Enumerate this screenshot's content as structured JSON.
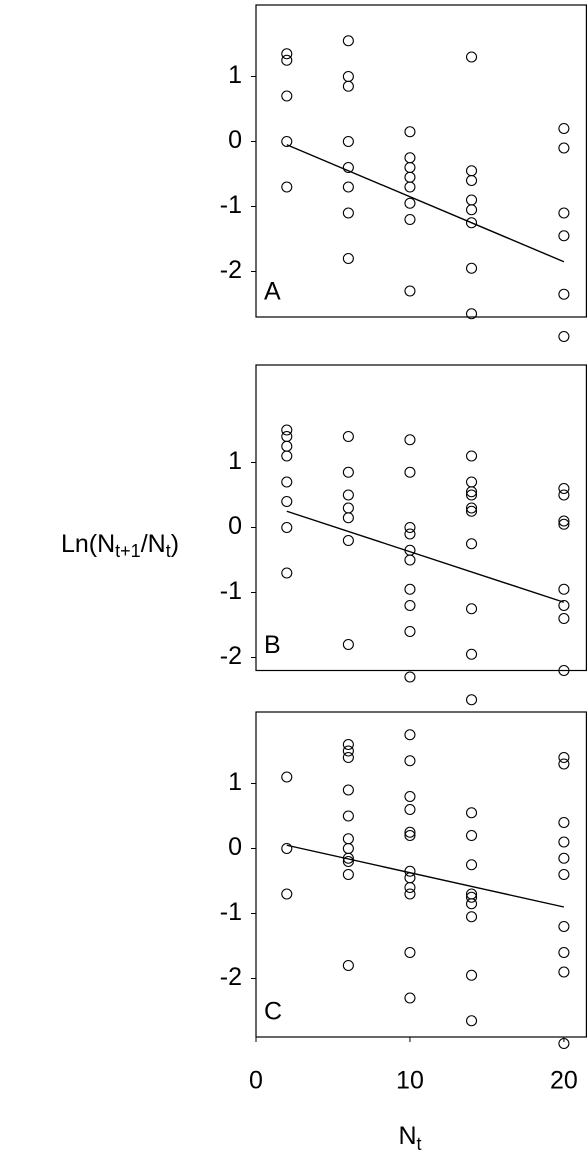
{
  "chart_data": [
    {
      "type": "scatter",
      "label": "A",
      "ylim": [
        -2.7,
        2.1
      ],
      "yticks": [
        -2,
        -1,
        0,
        1
      ],
      "xlim": [
        0,
        21.5
      ],
      "x": [
        2,
        2,
        2,
        2,
        2,
        6,
        6,
        6,
        6,
        6,
        6,
        6,
        6,
        10,
        10,
        10,
        10,
        10,
        10,
        10,
        10,
        14,
        14,
        14,
        14,
        14,
        14,
        14,
        14,
        20,
        20,
        20,
        20,
        20,
        20
      ],
      "y": [
        1.35,
        1.25,
        0.7,
        0.0,
        -0.7,
        1.55,
        1.0,
        0.85,
        0.0,
        -0.4,
        -0.7,
        -1.1,
        -1.8,
        0.15,
        -0.25,
        -0.4,
        -0.55,
        -0.7,
        -0.95,
        -1.2,
        -2.3,
        1.3,
        -0.45,
        -0.6,
        -0.9,
        -1.05,
        -1.25,
        -1.95,
        -2.65,
        0.2,
        -0.1,
        -1.1,
        -1.45,
        -2.35,
        -3.0
      ],
      "fit": {
        "x": [
          2,
          20
        ],
        "y": [
          -0.05,
          -1.85
        ]
      }
    },
    {
      "type": "scatter",
      "label": "B",
      "ylim": [
        -2.2,
        2.5
      ],
      "yticks": [
        -2,
        -1,
        0,
        1
      ],
      "xlim": [
        0,
        21.5
      ],
      "x": [
        2,
        2,
        2,
        2,
        2,
        2,
        2,
        2,
        6,
        6,
        6,
        6,
        6,
        6,
        6,
        10,
        10,
        10,
        10,
        10,
        10,
        10,
        10,
        10,
        10,
        14,
        14,
        14,
        14,
        14,
        14,
        14,
        14,
        14,
        14,
        20,
        20,
        20,
        20,
        20,
        20,
        20,
        20
      ],
      "y": [
        1.5,
        1.4,
        1.25,
        1.1,
        0.7,
        0.4,
        0.0,
        -0.7,
        1.4,
        0.85,
        0.5,
        0.3,
        0.15,
        -0.2,
        -1.8,
        1.35,
        0.85,
        0.0,
        -0.1,
        -0.35,
        -0.5,
        -0.95,
        -1.2,
        -1.6,
        -2.3,
        1.1,
        0.7,
        0.55,
        0.5,
        0.3,
        0.25,
        -0.25,
        -1.25,
        -1.95,
        -2.65,
        0.6,
        0.5,
        0.1,
        0.05,
        -0.95,
        -1.2,
        -1.4,
        -2.2
      ],
      "fit": {
        "x": [
          2,
          20
        ],
        "y": [
          0.25,
          -1.15
        ]
      }
    },
    {
      "type": "scatter",
      "label": "C",
      "ylim": [
        -2.9,
        2.1
      ],
      "yticks": [
        -2,
        -1,
        0,
        1
      ],
      "xlim": [
        0,
        21.5
      ],
      "xticks": [
        0,
        10,
        20
      ],
      "x": [
        2,
        2,
        2,
        6,
        6,
        6,
        6,
        6,
        6,
        6,
        6,
        6,
        6,
        6,
        10,
        10,
        10,
        10,
        10,
        10,
        10,
        10,
        10,
        10,
        10,
        10,
        14,
        14,
        14,
        14,
        14,
        14,
        14,
        14,
        14,
        20,
        20,
        20,
        20,
        20,
        20,
        20,
        20,
        20,
        20
      ],
      "y": [
        1.1,
        0.0,
        -0.7,
        1.6,
        1.5,
        1.4,
        0.9,
        0.5,
        0.15,
        0.0,
        -0.15,
        -0.2,
        -0.4,
        -1.8,
        1.75,
        1.35,
        0.8,
        0.6,
        0.25,
        0.2,
        -0.35,
        -0.45,
        -0.6,
        -0.7,
        -1.6,
        -2.3,
        0.55,
        0.2,
        -0.25,
        -0.7,
        -0.75,
        -0.85,
        -1.05,
        -1.95,
        -2.65,
        1.4,
        1.3,
        0.4,
        0.1,
        -0.15,
        -0.4,
        -1.2,
        -1.6,
        -1.9,
        -3.0
      ],
      "fit": {
        "x": [
          2,
          20
        ],
        "y": [
          0.05,
          -0.9
        ]
      },
      "xlabel": [
        "N",
        "t"
      ]
    }
  ],
  "ylabel": [
    "Ln(N",
    "t+1",
    "/N",
    "t",
    ")"
  ]
}
